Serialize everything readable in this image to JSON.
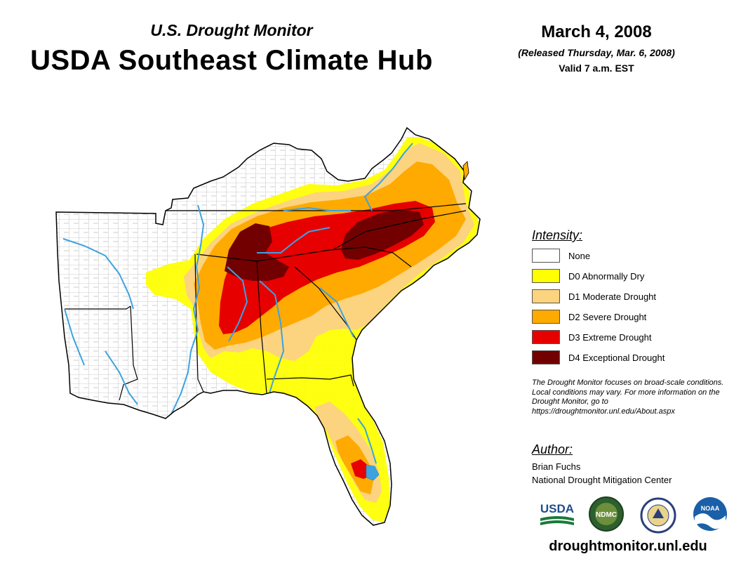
{
  "header": {
    "subtitle": "U.S. Drought Monitor",
    "title": "USDA Southeast Climate Hub",
    "date": "March 4, 2008",
    "released": "(Released Thursday, Mar. 6, 2008)",
    "valid": "Valid 7 a.m. EST"
  },
  "legend": {
    "heading": "Intensity:",
    "items": [
      {
        "label": "None",
        "color": "#ffffff"
      },
      {
        "label": "D0 Abnormally Dry",
        "color": "#ffff00"
      },
      {
        "label": "D1 Moderate Drought",
        "color": "#fcd37f"
      },
      {
        "label": "D2 Severe Drought",
        "color": "#ffaa00"
      },
      {
        "label": "D3 Extreme Drought",
        "color": "#e60000"
      },
      {
        "label": "D4 Exceptional Drought",
        "color": "#730000"
      }
    ]
  },
  "note": "The Drought Monitor focuses on broad-scale conditions. Local conditions may vary. For more information on the Drought Monitor, go to https://droughtmonitor.unl.edu/About.aspx",
  "author": {
    "heading": "Author:",
    "name": "Brian Fuchs",
    "organization": "National Drought Mitigation Center"
  },
  "logos": {
    "usda": "USDA",
    "ndmc": "NDMC",
    "doc": "doc-seal-icon",
    "noaa": "NOAA"
  },
  "website": "droughtmonitor.unl.edu",
  "colors": {
    "river": "#3ba3e0",
    "boundary": "#000000",
    "county": "#9a9a9a"
  }
}
